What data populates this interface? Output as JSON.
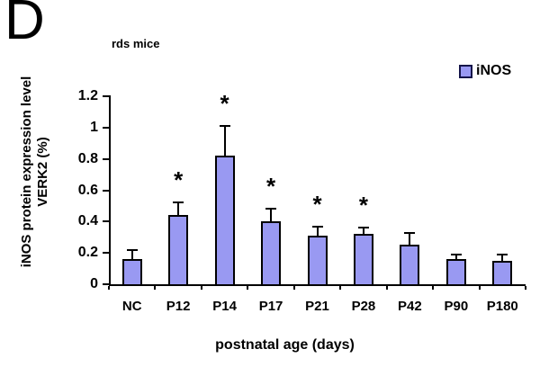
{
  "panel_label": "D",
  "chart_data": {
    "type": "bar",
    "title": "rds mice",
    "categories": [
      "NC",
      "P12",
      "P14",
      "P17",
      "P21",
      "P28",
      "P42",
      "P90",
      "P180"
    ],
    "series": [
      {
        "name": "iNOS",
        "values": [
          0.16,
          0.44,
          0.82,
          0.4,
          0.31,
          0.32,
          0.25,
          0.16,
          0.15
        ]
      }
    ],
    "error_upper": [
      0.06,
      0.08,
      0.19,
      0.08,
      0.06,
      0.04,
      0.08,
      0.03,
      0.04
    ],
    "significance": [
      "",
      "*",
      "*",
      "*",
      "*",
      "*",
      "",
      "",
      ""
    ],
    "xlabel": "postnatal age (days)",
    "ylabel_line1": "iNOS protein expression level",
    "ylabel_line2": "VERK2 (%)",
    "ylim": [
      0,
      1.2
    ],
    "y_ticks": [
      0,
      0.2,
      0.4,
      0.6,
      0.8,
      1,
      1.2
    ],
    "y_tick_labels": [
      "0",
      "0.2",
      "0.4",
      "0.6",
      "0.8",
      "1",
      "1.2"
    ],
    "legend": {
      "label": "iNOS",
      "color": "#9999F2"
    },
    "bar_color": "#9999F2",
    "bar_border_color": "#000000",
    "axis_color": "#000000",
    "grid": false,
    "legend_position": "top-right"
  }
}
